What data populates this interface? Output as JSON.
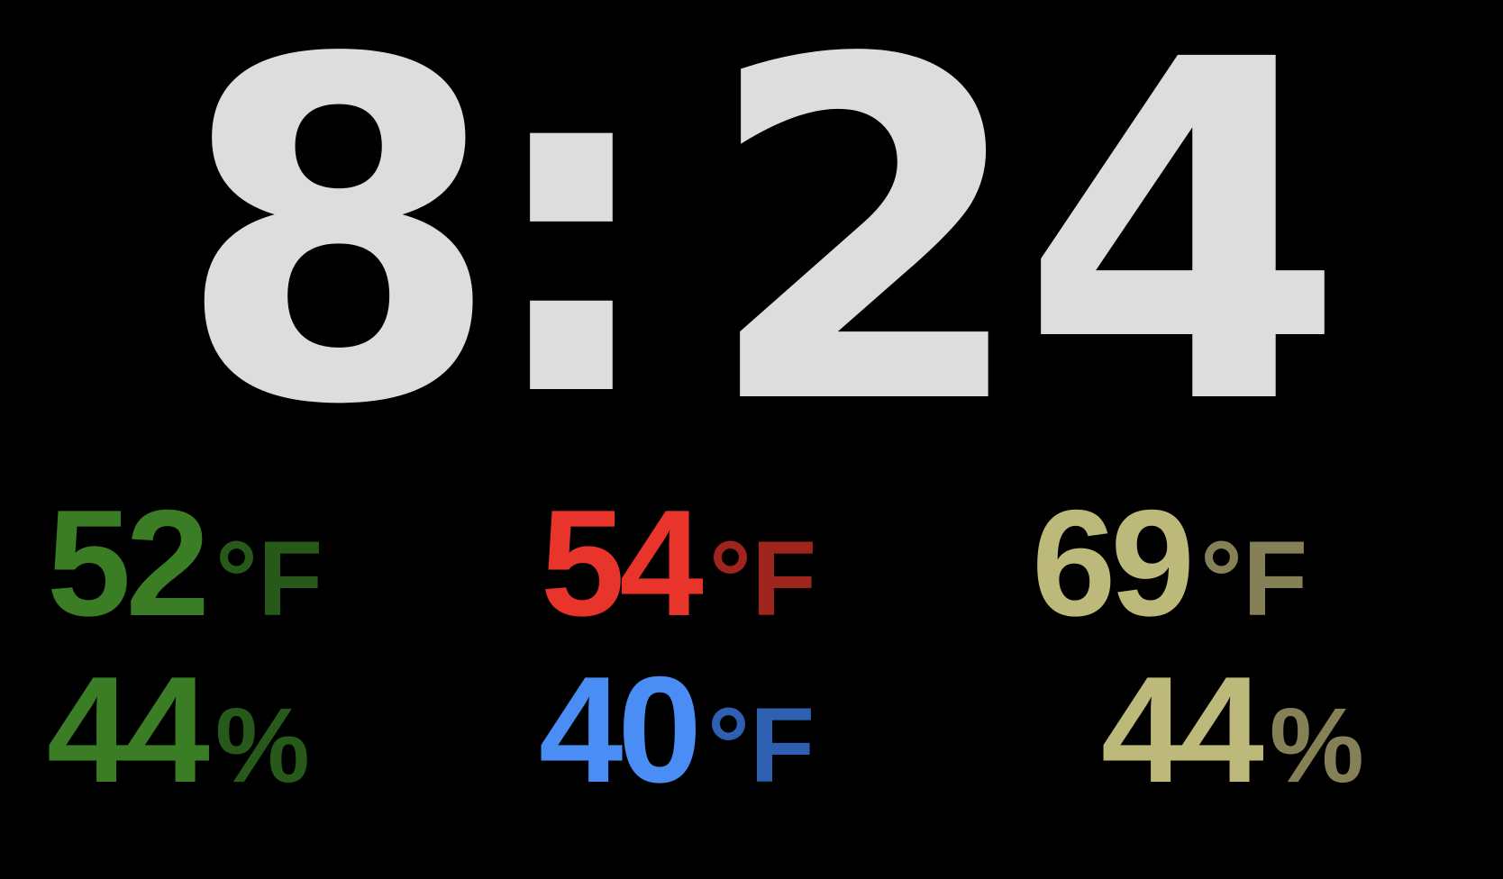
{
  "clock": {
    "hours": "8",
    "separator": ":",
    "minutes": "24"
  },
  "readings": [
    {
      "value": "52",
      "unit": "°F",
      "value_color": "#3a7d25",
      "unit_color": "#275a1a"
    },
    {
      "value": "54",
      "unit": "°F",
      "value_color": "#e8342a",
      "unit_color": "#a0241e"
    },
    {
      "value": "69",
      "unit": "°F",
      "value_color": "#bdb97a",
      "unit_color": "#858055"
    },
    {
      "value": "44",
      "unit": "%",
      "value_color": "#3a7d25",
      "unit_color": "#275a1a"
    },
    {
      "value": "40",
      "unit": "°F",
      "value_color": "#4a8ef5",
      "unit_color": "#2e5fb0"
    },
    {
      "value": "44",
      "unit": "%",
      "value_color": "#bdb97a",
      "unit_color": "#858055"
    }
  ],
  "colors": {
    "background": "#000000",
    "clock_text": "#dddddd"
  }
}
